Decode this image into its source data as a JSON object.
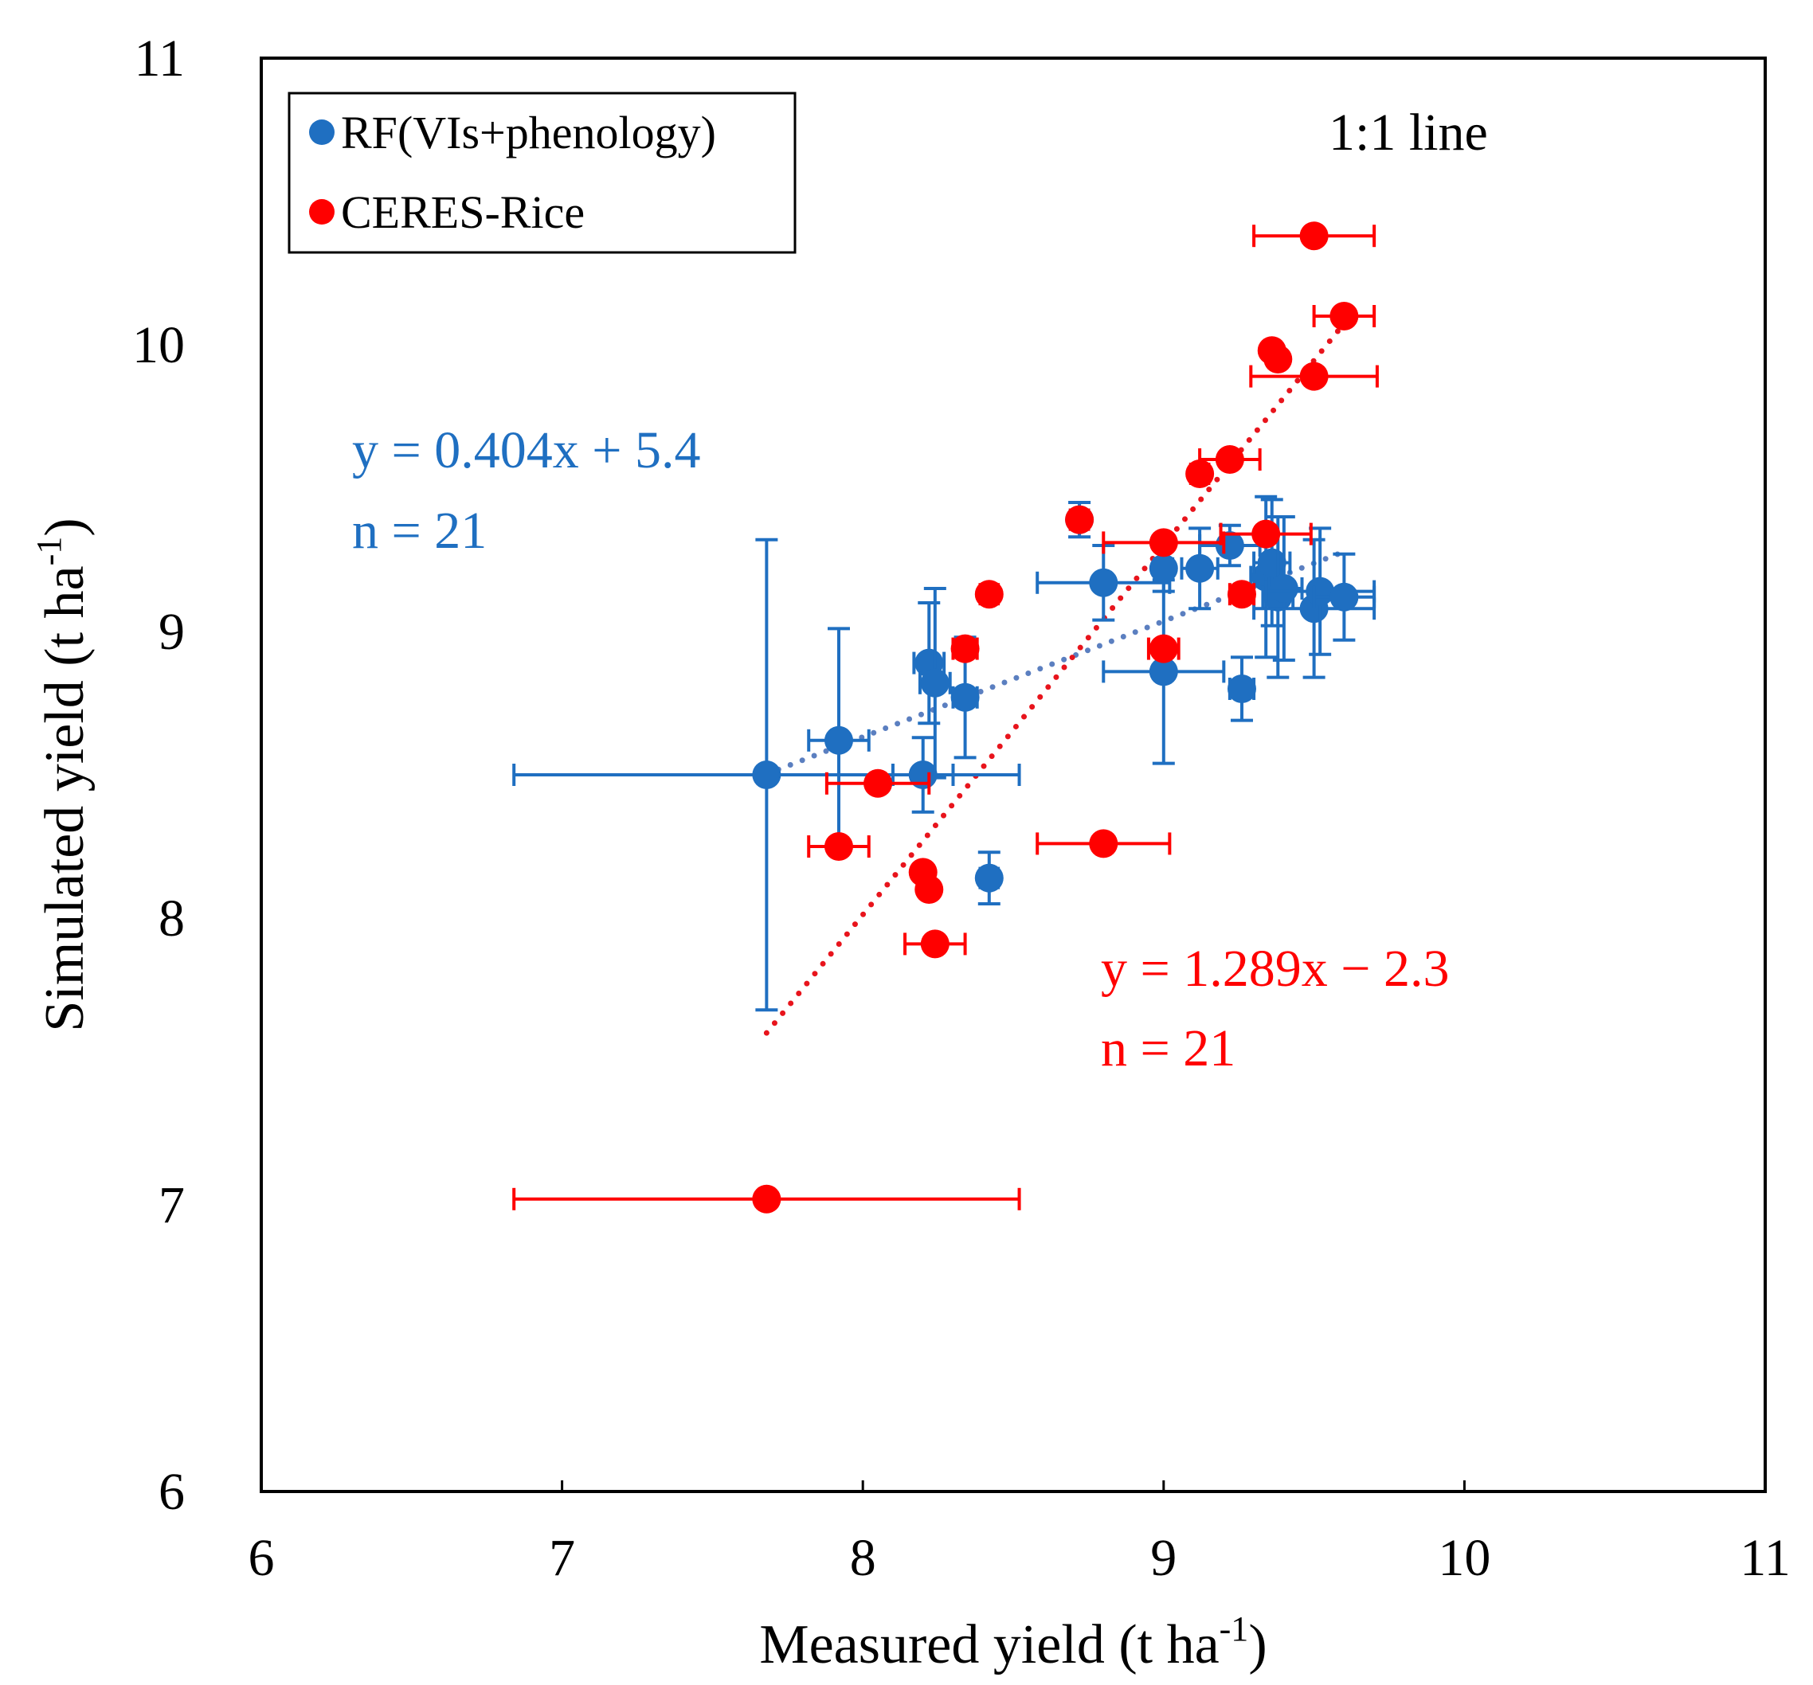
{
  "chart_data": {
    "type": "scatter",
    "title": "",
    "xlabel": {
      "main": "Measured yield (t ha",
      "sup": "-1",
      "close": ")"
    },
    "ylabel": {
      "main": "Simulated yield (t ha",
      "sup": "-1",
      "close": ")"
    },
    "xlim": [
      6,
      11
    ],
    "ylim": [
      6,
      11
    ],
    "xticks": [
      "6",
      "7",
      "8",
      "9",
      "10",
      "11"
    ],
    "yticks": [
      "6",
      "7",
      "8",
      "9",
      "10",
      "11"
    ],
    "grid": false,
    "legend_position": "top-left",
    "reference_line_label": "1:1 line",
    "series": [
      {
        "name": "RF(VIs+phenology)",
        "color": "#1f6fc1",
        "trend_color": "#5b7fc0",
        "fit": {
          "slope": 0.404,
          "intercept": 5.4,
          "x_range": [
            7.68,
            9.6
          ]
        },
        "equation": "y = 0.404x + 5.4",
        "n_label": "n = 21",
        "points": [
          {
            "x": 7.68,
            "y": 8.5,
            "xerr": 0.84,
            "yerr": 0.82
          },
          {
            "x": 7.92,
            "y": 8.62,
            "xerr": 0.1,
            "yerr": 0.39
          },
          {
            "x": 8.2,
            "y": 8.5,
            "xerr": 0.1,
            "yerr": 0.13
          },
          {
            "x": 8.22,
            "y": 8.89,
            "xerr": 0.05,
            "yerr": 0.21
          },
          {
            "x": 8.24,
            "y": 8.82,
            "xerr": 0.05,
            "yerr": 0.33
          },
          {
            "x": 8.34,
            "y": 8.77,
            "xerr": 0.04,
            "yerr": 0.21
          },
          {
            "x": 8.42,
            "y": 8.14,
            "xerr": 0.03,
            "yerr": 0.09
          },
          {
            "x": 8.72,
            "y": 9.39,
            "xerr": 0.03,
            "yerr": 0.06
          },
          {
            "x": 8.8,
            "y": 9.17,
            "xerr": 0.22,
            "yerr": 0.13
          },
          {
            "x": 9.0,
            "y": 8.86,
            "xerr": 0.2,
            "yerr": 0.32
          },
          {
            "x": 9.0,
            "y": 9.22,
            "xerr": 0.03,
            "yerr": 0.08
          },
          {
            "x": 9.12,
            "y": 9.22,
            "xerr": 0.06,
            "yerr": 0.14
          },
          {
            "x": 9.22,
            "y": 9.3,
            "xerr": 0.1,
            "yerr": 0.07
          },
          {
            "x": 9.26,
            "y": 8.8,
            "xerr": 0.04,
            "yerr": 0.11
          },
          {
            "x": 9.34,
            "y": 9.19,
            "xerr": 0.05,
            "yerr": 0.28
          },
          {
            "x": 9.36,
            "y": 9.24,
            "xerr": 0.06,
            "yerr": 0.22
          },
          {
            "x": 9.38,
            "y": 9.12,
            "xerr": 0.05,
            "yerr": 0.28
          },
          {
            "x": 9.4,
            "y": 9.15,
            "xerr": 0.06,
            "yerr": 0.25
          },
          {
            "x": 9.5,
            "y": 9.08,
            "xerr": 0.2,
            "yerr": 0.24
          },
          {
            "x": 9.52,
            "y": 9.14,
            "xerr": 0.18,
            "yerr": 0.22
          },
          {
            "x": 9.6,
            "y": 9.12,
            "xerr": 0.1,
            "yerr": 0.15
          }
        ]
      },
      {
        "name": "CERES-Rice",
        "color": "#ff0000",
        "trend_color": "#e8141c",
        "fit": {
          "slope": 1.289,
          "intercept": -2.3,
          "x_range": [
            7.68,
            9.6
          ]
        },
        "equation": "y = 1.289x − 2.3",
        "n_label": "n = 21",
        "points": [
          {
            "x": 7.68,
            "y": 7.02,
            "xerr": 0.84
          },
          {
            "x": 7.92,
            "y": 8.25,
            "xerr": 0.1
          },
          {
            "x": 8.05,
            "y": 8.47,
            "xerr": 0.17
          },
          {
            "x": 8.2,
            "y": 8.16,
            "xerr": 0.02
          },
          {
            "x": 8.22,
            "y": 8.1,
            "xerr": 0.02
          },
          {
            "x": 8.24,
            "y": 7.91,
            "xerr": 0.1
          },
          {
            "x": 8.34,
            "y": 8.94,
            "xerr": 0.04
          },
          {
            "x": 8.42,
            "y": 9.13,
            "xerr": 0.03
          },
          {
            "x": 8.72,
            "y": 9.39,
            "xerr": 0.03
          },
          {
            "x": 8.8,
            "y": 8.26,
            "xerr": 0.22
          },
          {
            "x": 9.0,
            "y": 9.31,
            "xerr": 0.2
          },
          {
            "x": 9.0,
            "y": 8.94,
            "xerr": 0.05
          },
          {
            "x": 9.12,
            "y": 9.55,
            "xerr": 0.03
          },
          {
            "x": 9.22,
            "y": 9.6,
            "xerr": 0.1
          },
          {
            "x": 9.26,
            "y": 9.13,
            "xerr": 0.04
          },
          {
            "x": 9.34,
            "y": 9.34,
            "xerr": 0.15
          },
          {
            "x": 9.36,
            "y": 9.98,
            "xerr": 0.02
          },
          {
            "x": 9.38,
            "y": 9.95,
            "xerr": 0.02
          },
          {
            "x": 9.5,
            "y": 9.89,
            "xerr": 0.21
          },
          {
            "x": 9.5,
            "y": 10.38,
            "xerr": 0.2
          },
          {
            "x": 9.6,
            "y": 10.1,
            "xerr": 0.1
          }
        ]
      }
    ]
  }
}
